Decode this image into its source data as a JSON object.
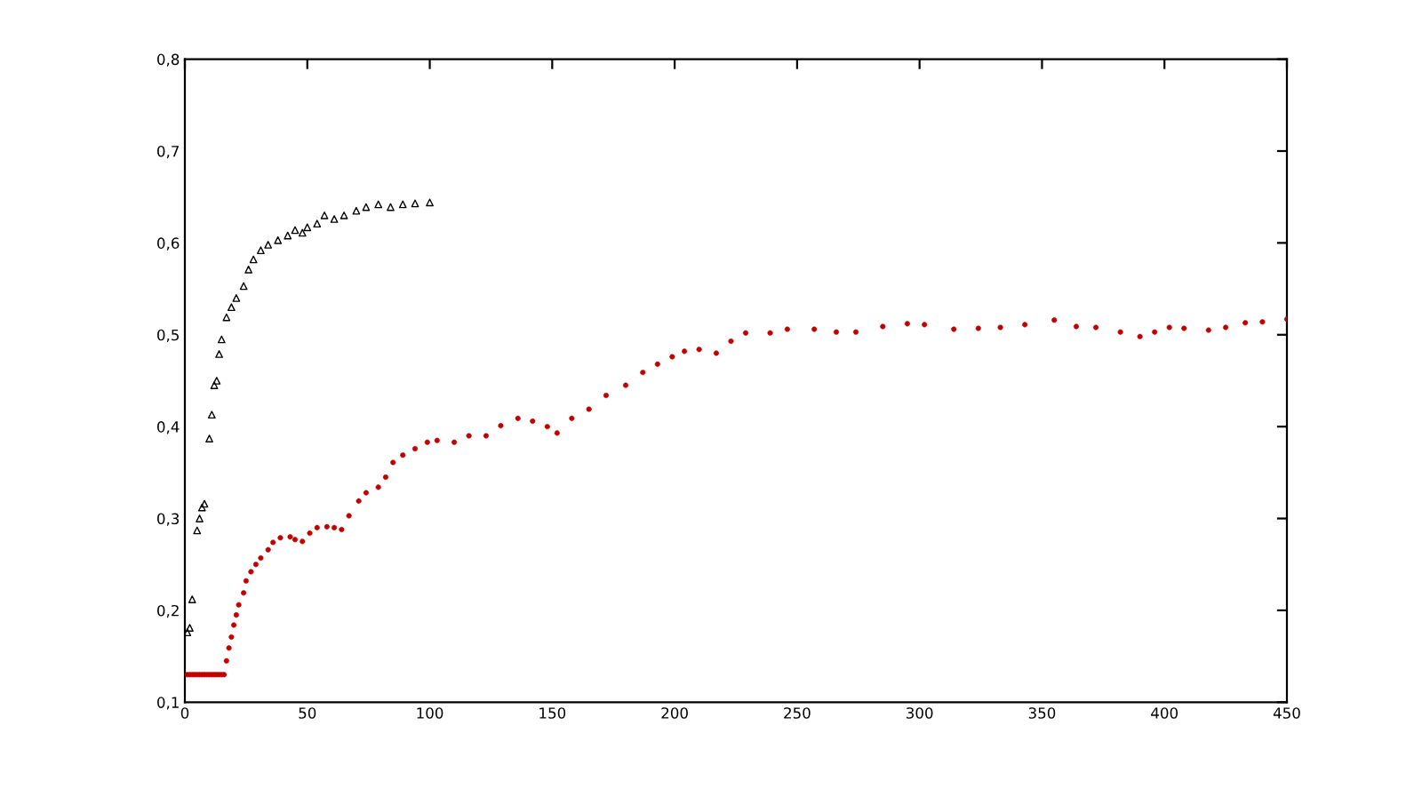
{
  "chart_data": {
    "type": "scatter",
    "xlim": [
      0,
      450
    ],
    "xticks": [
      0,
      50,
      100,
      150,
      200,
      250,
      300,
      350,
      400,
      450
    ],
    "ylim": [
      0.1,
      0.8
    ],
    "yticks": [
      {
        "value": 0.1,
        "label": "0,1"
      },
      {
        "value": 0.2,
        "label": "0,2"
      },
      {
        "value": 0.3,
        "label": "0,3"
      },
      {
        "value": 0.4,
        "label": "0,4"
      },
      {
        "value": 0.5,
        "label": "0,5"
      },
      {
        "value": 0.6,
        "label": "0,6"
      },
      {
        "value": 0.7,
        "label": "0,7"
      },
      {
        "value": 0.8,
        "label": "0,8"
      }
    ],
    "grid": false,
    "series": [
      {
        "color": "#c00000",
        "marker": "circle",
        "x": [
          1,
          2,
          3,
          4,
          5,
          6,
          7,
          8,
          9,
          10,
          11,
          12,
          13,
          14,
          15,
          16,
          17,
          18,
          19,
          20,
          21,
          22,
          24,
          25,
          27,
          29,
          31,
          34,
          36,
          39,
          43,
          45,
          48,
          51,
          54,
          58,
          61,
          64,
          67,
          71,
          74,
          79,
          82,
          85,
          89,
          94,
          99,
          103,
          110,
          116,
          123,
          129,
          136,
          142,
          148,
          152,
          158,
          165,
          172,
          180,
          187,
          193,
          199,
          204,
          210,
          217,
          223,
          229,
          239,
          246,
          257,
          266,
          274,
          285,
          295,
          302,
          314,
          324,
          333,
          343,
          355,
          364,
          372,
          382,
          390,
          396,
          402,
          408,
          418,
          425,
          433,
          440,
          450
        ],
        "values": [
          0.13,
          0.13,
          0.13,
          0.13,
          0.13,
          0.13,
          0.13,
          0.13,
          0.13,
          0.13,
          0.13,
          0.13,
          0.13,
          0.13,
          0.13,
          0.13,
          0.145,
          0.159,
          0.171,
          0.184,
          0.195,
          0.206,
          0.219,
          0.232,
          0.242,
          0.25,
          0.257,
          0.266,
          0.274,
          0.279,
          0.28,
          0.277,
          0.275,
          0.284,
          0.29,
          0.291,
          0.29,
          0.288,
          0.303,
          0.319,
          0.328,
          0.334,
          0.345,
          0.361,
          0.369,
          0.376,
          0.383,
          0.385,
          0.383,
          0.39,
          0.39,
          0.401,
          0.409,
          0.406,
          0.4,
          0.393,
          0.409,
          0.419,
          0.434,
          0.445,
          0.459,
          0.468,
          0.476,
          0.482,
          0.484,
          0.48,
          0.493,
          0.502,
          0.502,
          0.506,
          0.506,
          0.503,
          0.503,
          0.509,
          0.512,
          0.511,
          0.506,
          0.507,
          0.508,
          0.511,
          0.516,
          0.509,
          0.508,
          0.503,
          0.498,
          0.503,
          0.508,
          0.507,
          0.505,
          0.508,
          0.513,
          0.514,
          0.517
        ]
      },
      {
        "color": "#000000",
        "marker": "triangle",
        "x": [
          1,
          2,
          3,
          5,
          6,
          7,
          8,
          10,
          11,
          12,
          13,
          14,
          15,
          17,
          19,
          21,
          24,
          26,
          28,
          31,
          34,
          38,
          42,
          45,
          48,
          50,
          54,
          57,
          61,
          65,
          70,
          74,
          79,
          84,
          89,
          94,
          100
        ],
        "values": [
          0.176,
          0.181,
          0.212,
          0.287,
          0.3,
          0.312,
          0.316,
          0.387,
          0.413,
          0.445,
          0.45,
          0.479,
          0.495,
          0.519,
          0.53,
          0.54,
          0.553,
          0.571,
          0.582,
          0.592,
          0.598,
          0.603,
          0.608,
          0.614,
          0.611,
          0.617,
          0.621,
          0.63,
          0.626,
          0.63,
          0.635,
          0.639,
          0.642,
          0.639,
          0.642,
          0.643,
          0.644
        ]
      }
    ]
  }
}
